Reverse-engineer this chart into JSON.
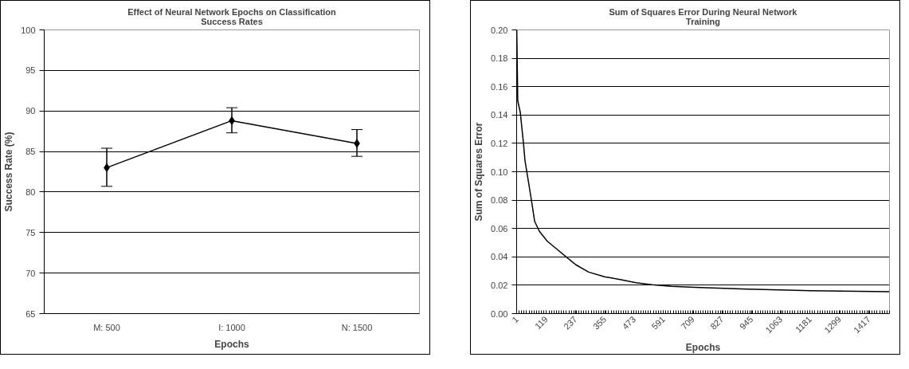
{
  "chart_data": [
    {
      "type": "line",
      "title": "Effect of Neural Network Epochs on Classification Success Rates",
      "xlabel": "Epochs",
      "ylabel": "Success Rate (%)",
      "categories": [
        "M: 500",
        "I: 1000",
        "N: 1500"
      ],
      "series": [
        {
          "color": "#000000",
          "values": [
            83.0,
            88.8,
            86.0
          ],
          "errors": [
            [
              80.7,
              85.4
            ],
            [
              87.3,
              90.4
            ],
            [
              84.4,
              87.7
            ]
          ]
        }
      ],
      "ylim": [
        65,
        100
      ],
      "yticks": [
        65,
        70,
        75,
        80,
        85,
        90,
        95,
        100
      ],
      "grid": "y",
      "marker": "diamond",
      "line_style": "solid"
    },
    {
      "type": "line",
      "title": "Sum of Squares Error During Neural Network Training",
      "xlabel": "Epochs",
      "ylabel": "Sum of Squares Error",
      "x": [
        1,
        5,
        15,
        28,
        34,
        47,
        60,
        73,
        92,
        124,
        162,
        200,
        239,
        290,
        354,
        417,
        481,
        545,
        622,
        737,
        928,
        1183,
        1500
      ],
      "series": [
        {
          "color": "#000000",
          "values": [
            0.2,
            0.15,
            0.142,
            0.12,
            0.108,
            0.094,
            0.08,
            0.065,
            0.058,
            0.051,
            0.0455,
            0.04,
            0.0344,
            0.0293,
            0.026,
            0.024,
            0.0218,
            0.0204,
            0.0193,
            0.0184,
            0.0173,
            0.0162,
            0.0154
          ]
        }
      ],
      "xlim": [
        0.5,
        1500.5
      ],
      "xticks": [
        1,
        119,
        237,
        355,
        473,
        591,
        709,
        827,
        945,
        1063,
        1181,
        1299,
        1417
      ],
      "ylim": [
        0,
        0.2
      ],
      "yticks": [
        {
          "value": 0,
          "label": "0.00"
        },
        {
          "value": 0.02,
          "label": "0.02"
        },
        {
          "value": 0.04,
          "label": "0.04"
        },
        {
          "value": 0.06,
          "label": "0.06"
        },
        {
          "value": 0.08,
          "label": "0.08"
        },
        {
          "value": 0.1,
          "label": "0.10"
        },
        {
          "value": 0.12,
          "label": "0.12"
        },
        {
          "value": 0.14,
          "label": "0.14"
        },
        {
          "value": 0.16,
          "label": "0.16"
        },
        {
          "value": 0.18,
          "label": "0.18"
        },
        {
          "value": 0.2,
          "label": "0.20"
        }
      ],
      "grid": "y",
      "marker": "none",
      "line_style": "solid"
    }
  ]
}
